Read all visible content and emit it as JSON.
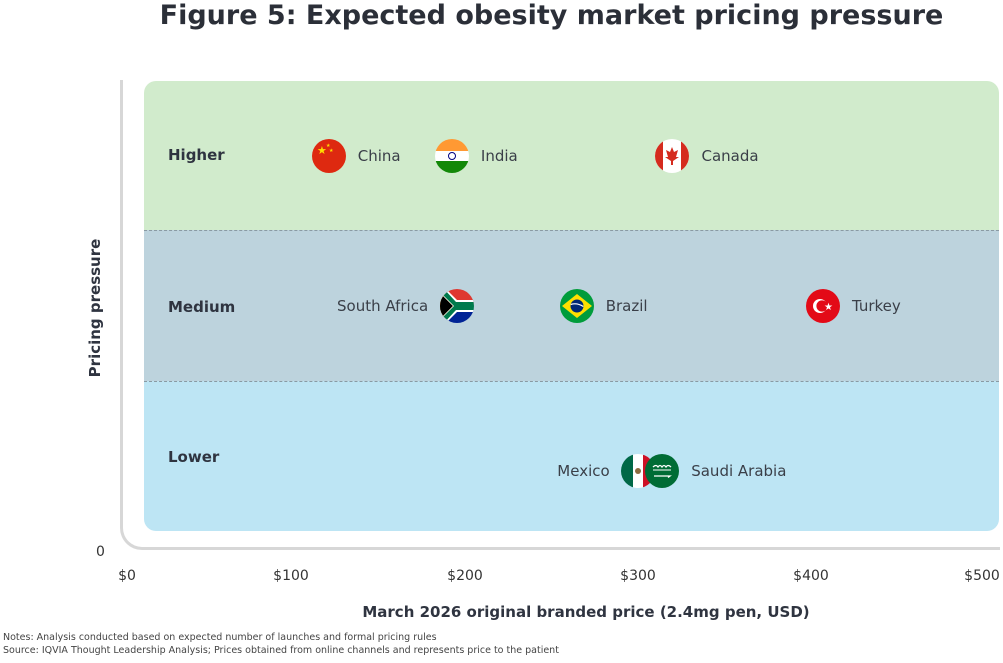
{
  "title": "Figure 5: Expected obesity market pricing pressure",
  "chart_data": {
    "type": "scatter",
    "title": "Figure 5: Expected obesity market pricing pressure",
    "xlabel": "March 2026 original branded price (2.4mg pen, USD)",
    "ylabel": "Pricing pressure",
    "xlim": [
      0,
      500
    ],
    "x_ticks": [
      "$0",
      "$100",
      "$200",
      "$300",
      "$400",
      "$500"
    ],
    "y_origin_label": "0",
    "categories": [
      "Higher",
      "Medium",
      "Lower"
    ],
    "points": [
      {
        "country": "China",
        "category": "Higher",
        "x": 118
      },
      {
        "country": "India",
        "category": "Higher",
        "x": 190
      },
      {
        "country": "Canada",
        "category": "Higher",
        "x": 319
      },
      {
        "country": "South Africa",
        "category": "Medium",
        "x": 193
      },
      {
        "country": "Brazil",
        "category": "Medium",
        "x": 263
      },
      {
        "country": "Turkey",
        "category": "Medium",
        "x": 407
      },
      {
        "country": "Mexico",
        "category": "Lower",
        "x": 299
      },
      {
        "country": "Saudi Arabia",
        "category": "Lower",
        "x": 313
      }
    ],
    "band_colors": {
      "Higher": "#d1ebcc",
      "Medium": "#bdd3dd",
      "Lower": "#bde5f4"
    }
  },
  "notes": {
    "notes_line": "Notes: Analysis conducted based on expected number of launches and formal pricing rules",
    "source_line": "Source: IQVIA Thought Leadership Analysis; Prices obtained from online channels and represents price to the patient"
  }
}
